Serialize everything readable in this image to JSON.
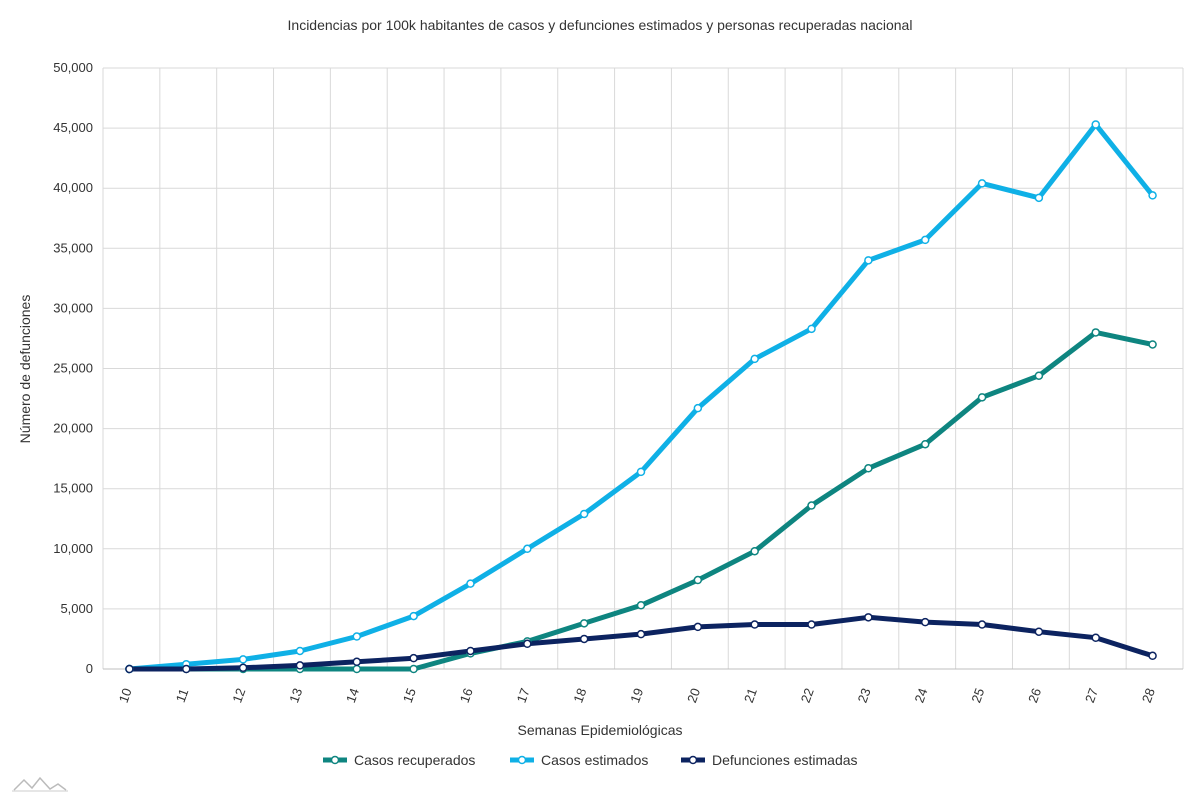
{
  "chart_data": {
    "type": "line",
    "title": "Incidencias por 100k habitantes de casos y defunciones estimados y personas recuperadas nacional",
    "xlabel": "Semanas Epidemiológicas",
    "ylabel": "Número de defunciones",
    "x": [
      "10",
      "11",
      "12",
      "13",
      "14",
      "15",
      "16",
      "17",
      "18",
      "19",
      "20",
      "21",
      "22",
      "23",
      "24",
      "25",
      "26",
      "27",
      "28"
    ],
    "ylim": [
      0,
      50000
    ],
    "yticks": [
      0,
      5000,
      10000,
      15000,
      20000,
      25000,
      30000,
      35000,
      40000,
      45000,
      50000
    ],
    "ytick_labels": [
      "0",
      "5,000",
      "10,000",
      "15,000",
      "20,000",
      "25,000",
      "30,000",
      "35,000",
      "40,000",
      "45,000",
      "50,000"
    ],
    "grid": true,
    "legend_position": "bottom",
    "series": [
      {
        "name": "Casos recuperados",
        "color": "#0e8580",
        "values": [
          0,
          0,
          0,
          0,
          0,
          0,
          1300,
          2300,
          3800,
          5300,
          7400,
          9800,
          13600,
          16700,
          18700,
          22600,
          24400,
          28000,
          27000
        ]
      },
      {
        "name": "Casos estimados",
        "color": "#0fb0e6",
        "values": [
          0,
          400,
          800,
          1500,
          2700,
          4400,
          7100,
          10000,
          12900,
          16400,
          21700,
          25800,
          28300,
          34000,
          35700,
          40400,
          39200,
          45300,
          39400
        ]
      },
      {
        "name": "Defunciones estimadas",
        "color": "#0c2360",
        "values": [
          0,
          0,
          100,
          300,
          600,
          900,
          1500,
          2100,
          2500,
          2900,
          3500,
          3700,
          3700,
          4300,
          3900,
          3700,
          3100,
          2600,
          1100
        ]
      }
    ]
  }
}
